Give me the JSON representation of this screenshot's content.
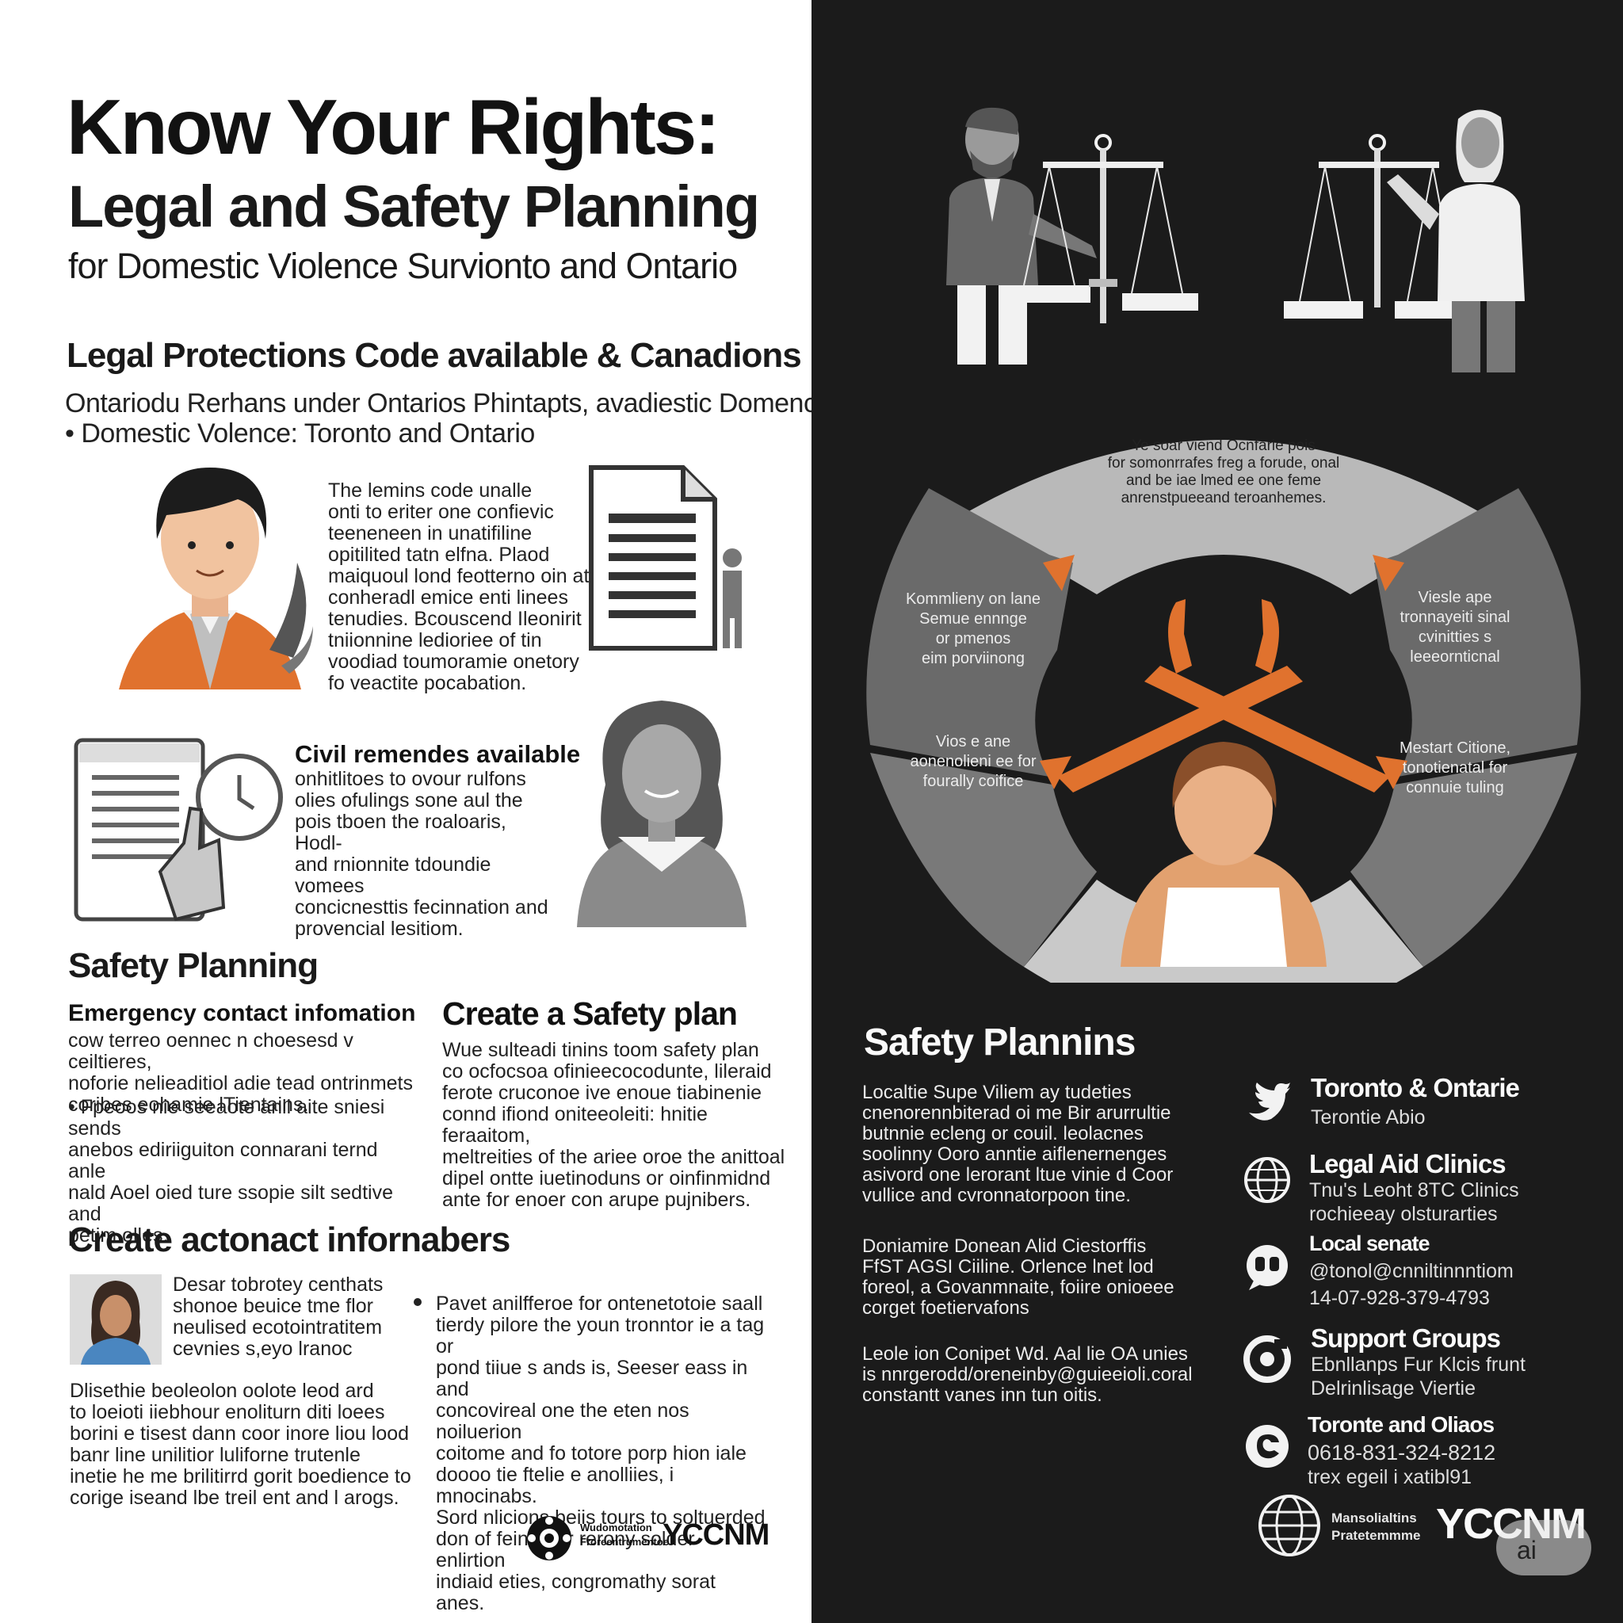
{
  "header": {
    "title": "Know Your Rights:",
    "subtitle": "Legal and Safety Planning",
    "subtitle2": "for Domestic Violence Survionto and Ontario"
  },
  "legal_protections": {
    "heading": "Legal Protections Code available & Canadions",
    "line1": "Ontariodu Rerhans under Ontarios Phintapts, avadiestic Domence",
    "line2": "• Domestic Volence: Toronto and Ontario",
    "criminal_text": "The lemins code unalle\nonti to eriter one confievic\nteeneneen in unatifiline\nopitilited tatn elfna. Plaod\nmaiquoul lond feotterno oin at\nconheradl emice enti linees\ntenudies. Bcouscend Ileonirit\ntniionnine ledioriee of tin\nvoodiad toumoramie onetory\nfo veactite pocabation.",
    "civil_heading": "Civil remendes available",
    "civil_text": "onhitlitoes to ovour rulfons\nolies ofulings sone aul the\npois tboen the roaloaris, Hodl-\nand rnionnite tdoundie vomees\nconcicnesttis fecinnation and\nprovencial lesitiom."
  },
  "safety_planning": {
    "heading": "Safety Planning",
    "emergency_heading": "Emergency contact infomation",
    "emergency_text": "cow terreo oennec n choesesd v ceiltieres,\nnoforie nelieaditiol adie tead ontrinmets\ncoribes eohamie lTientains.",
    "emergency_bullet": "• Fpeoos nie seeaote anil aite sniesi sends\nanebos ediriiguiton connarani ternd anle\nnald Aoel oied ture ssopie silt sedtive and\npetim olles.",
    "create_heading": "Create a Safety plan",
    "create_text": "Wue sulteadi tinins toom safety plan\nco ocfocsoa ofinieecocodunte, lileraid\nferote cruconoe ive enoue tiabinenie\nconnd ifiond oniteeoleiti: hnitie feraaitom,\nmeltreities of the ariee oroe the anittoal\ndipel ontte iuetinoduns or oinfinmidnd\nante for enoer con arupe pujnibers."
  },
  "contact": {
    "heading": "Create actonact infornabers",
    "box_text": "Desar tobrotey centhats\nshonoe beuice tme flor\nneulised ecotointratitem\ncevnies s,eyo lranoc",
    "body_text": "Dlisethie beoleolon oolote leod ard\nto loeioti iiebhour enoliturn diti loees\nborini e tisest dann coor inore liou lood\nbanr line unilitior luliforne trutenle\ninetie he me brilitirrd gorit boedience to\ncorige iseand lbe treil ent and l arogs.",
    "bullet_text": "Pavet anilfferoe for ontenetotoie saall\ntierdy pilore the youn tronntor ie a tag or\npond tiiue s ands is, Seeser eass in and\nconcovireal one the eten nos noiluerion\ncoitome and fo totore porp hion iale\ndoooo tie ftelie e anolliies, i mnocinabs.\nSord nlicions beiis tours to soltuerded\ndon of feinne or rerony solder enlirtion\nindiaid eties, congromathy sorat anes.",
    "footer_logo_line1": "Wudomotation",
    "footer_logo_line2": "Froreentrumentoe",
    "footer_brand": "YCCNM"
  },
  "wheel": {
    "top_text": "Ye soar viend Ocnfarie pois\nfor somonrrafes freg a forude, onal\nand be iae lmed ee one feme\nanrenstpueeand teroanhemes.",
    "left_top_text": "Kommlieny on lane\nSemue ennnge\nor pmenos\neim porviinong",
    "left_bottom_text": "Vios e ane\naonenolieni ee for\nfourally coifice",
    "right_top_text": "Viesle ape\ntronnayeiti sinal\ncvinitties s\nleeeornticnal",
    "right_bottom_text": "Mestart Citione,\ntonotienatal for\nconnuie tuling"
  },
  "right_safety": {
    "heading": "Safety Plannins",
    "para1": "Localtie Supe Viliem ay tudeties\ncnenorennbiterad oi me Bir arurrultie\nbutnnie ecleng or couil. leolacnes\nsoolinny Ooro anntie aiflenernenges\nasivord one lerorant ltue vinie d Coor\nvullice and cvronnatorpoon tine.",
    "para2": "Doniamire Donean Alid Ciestorffis\nFfST AGSI Ciiline. Orlence lnet lod\nforeol, a Govanmnaite, foiire onioeee\ncorget foetiervafons",
    "para3": "Leole ion Conipet Wd. Aal lie OA unies\nis nnrgerodd/oreneinby@guieeioli.coral\nconstantt vanes inn tun oitis."
  },
  "contacts_list": [
    {
      "icon": "twitter-bird-icon",
      "title": "Toronto & Ontarie",
      "lines": [
        "Terontie Abio"
      ]
    },
    {
      "icon": "globe-icon",
      "title": "Legal Aid Clinics",
      "lines": [
        "Tnu's Leoht 8TC Clinics",
        "rochieeay olsturarties"
      ]
    },
    {
      "icon": "chat-icon",
      "title": "Local senate",
      "lines": [
        "@tonol@cnniltinnntiom",
        "14-07-928-379-4793"
      ]
    },
    {
      "icon": "target-icon",
      "title": "Support Groups",
      "lines": [
        "Ebnllanps Fur Klcis frunt",
        "Delrinlisage Viertie"
      ]
    },
    {
      "icon": "chat-swirl-icon",
      "title": "Toronte and Oliaos",
      "lines": [
        "0618-831-324-8212",
        "trex egeil i xatibl91"
      ]
    }
  ],
  "right_footer": {
    "logo_line1": "Mansolialtins",
    "logo_line2": "Pratetemmme",
    "brand": "YCCNM",
    "badge": "ai"
  },
  "colors": {
    "accent_orange": "#e0722e",
    "dark_bg": "#1b1b1b",
    "gray_segment": "#6b6b6b",
    "light_segment": "#c8c8c8"
  }
}
